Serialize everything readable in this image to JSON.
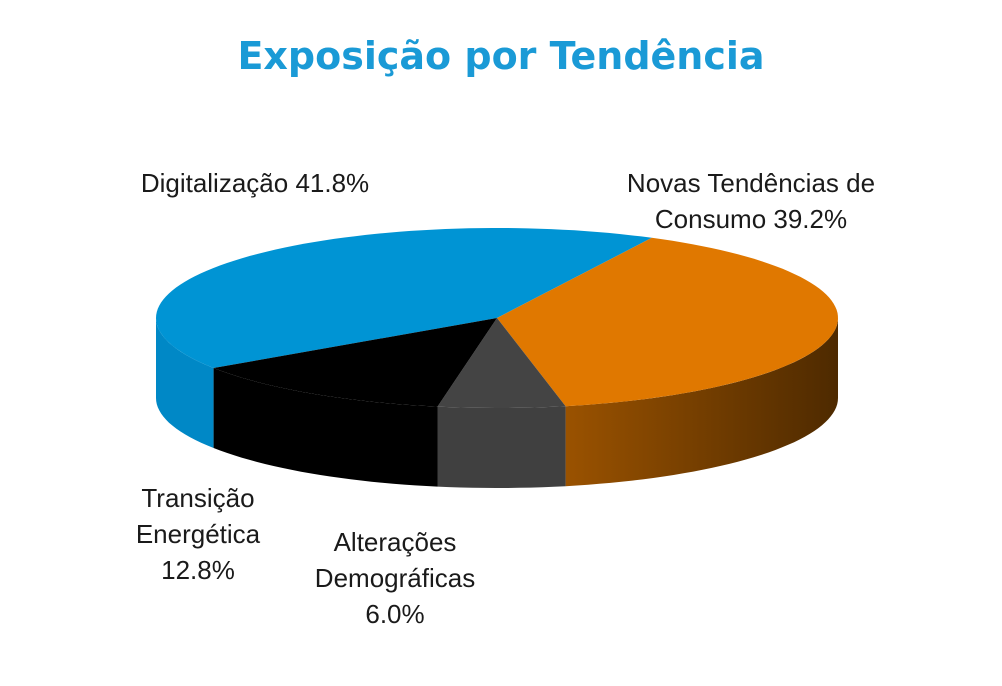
{
  "chart_data": {
    "type": "pie",
    "title": "Exposição por Tendência",
    "categories": [
      "Digitalização",
      "Novas Tendências de Consumo",
      "Alterações Demográficas",
      "Transição Energética"
    ],
    "values": [
      41.8,
      39.2,
      6.0,
      12.8
    ],
    "value_labels": [
      "41.8%",
      "39.2%",
      "6.0%",
      "12.8%"
    ],
    "colors": [
      "#0094d4",
      "#e07800",
      "#444444",
      "#000000"
    ]
  }
}
